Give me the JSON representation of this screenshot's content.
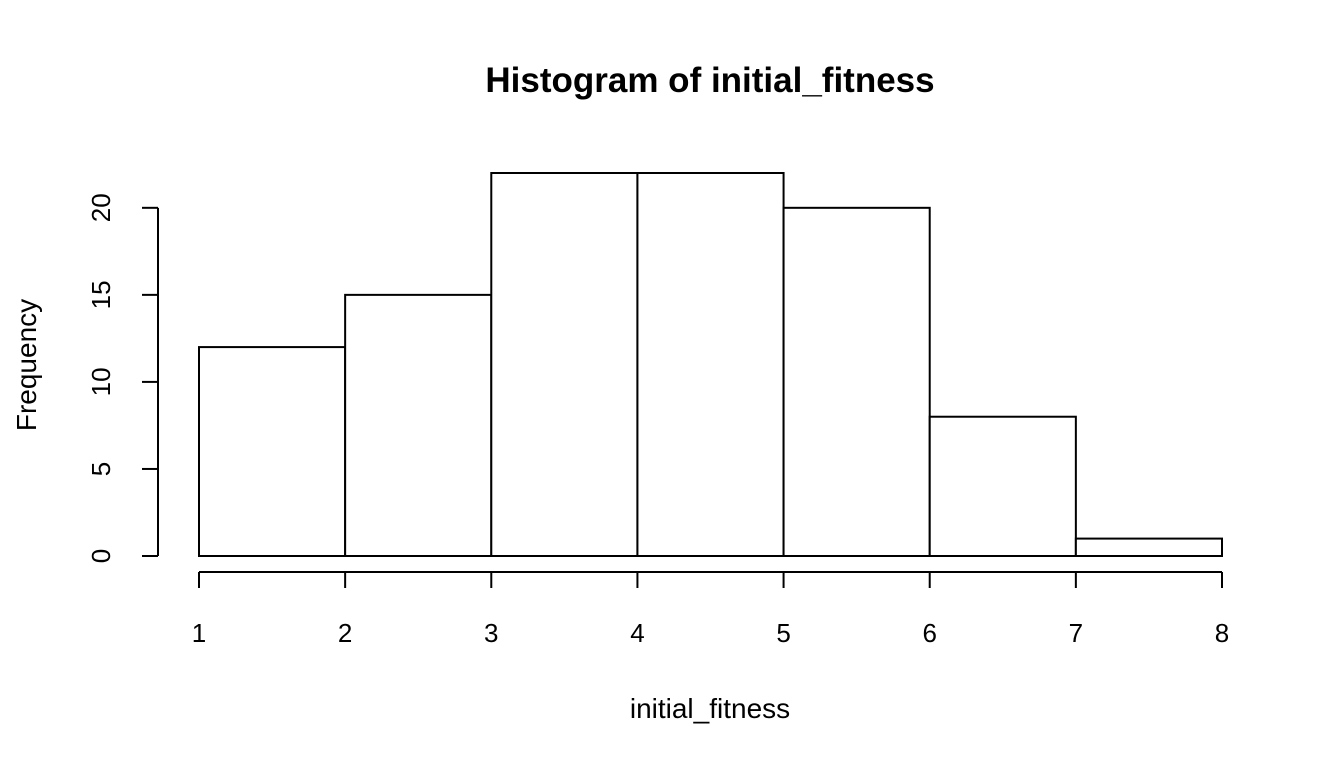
{
  "chart_data": {
    "type": "bar",
    "title": "Histogram of initial_fitness",
    "xlabel": "initial_fitness",
    "ylabel": "Frequency",
    "bins": [
      {
        "start": 1,
        "end": 2,
        "count": 12
      },
      {
        "start": 2,
        "end": 3,
        "count": 15
      },
      {
        "start": 3,
        "end": 4,
        "count": 22
      },
      {
        "start": 4,
        "end": 5,
        "count": 22
      },
      {
        "start": 5,
        "end": 6,
        "count": 20
      },
      {
        "start": 6,
        "end": 7,
        "count": 8
      },
      {
        "start": 7,
        "end": 8,
        "count": 1
      }
    ],
    "xlim": [
      1,
      8
    ],
    "ylim": [
      0,
      22
    ],
    "xticks": [
      "1",
      "2",
      "3",
      "4",
      "5",
      "6",
      "7",
      "8"
    ],
    "yticks": [
      "0",
      "5",
      "10",
      "15",
      "20"
    ],
    "colors": {
      "fill": "#ffffff",
      "stroke": "#000000"
    },
    "grid": false,
    "legend": "none"
  }
}
